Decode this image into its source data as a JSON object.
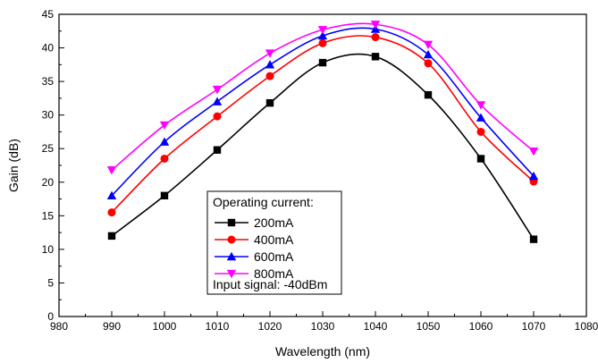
{
  "chart_data": {
    "type": "line",
    "title": "",
    "xlabel": "Wavelength (nm)",
    "ylabel": "Gain (dB)",
    "xlim": [
      980,
      1080
    ],
    "ylim": [
      0,
      45
    ],
    "x_ticks": [
      980,
      990,
      1000,
      1010,
      1020,
      1030,
      1040,
      1050,
      1060,
      1070,
      1080
    ],
    "y_ticks": [
      0,
      5,
      10,
      15,
      20,
      25,
      30,
      35,
      40,
      45
    ],
    "x_tick_labels": [
      "980",
      "990",
      "1000",
      "1010",
      "1020",
      "1030",
      "1040",
      "1050",
      "1060",
      "1070",
      "1080"
    ],
    "y_tick_labels": [
      "0",
      "5",
      "10",
      "15",
      "20",
      "25",
      "30",
      "35",
      "40",
      "45"
    ],
    "x": [
      990,
      1000,
      1010,
      1020,
      1030,
      1040,
      1050,
      1060,
      1070
    ],
    "grid": false,
    "legend_position": "bottom-center",
    "legend_title": "Operating current:",
    "legend_footer": "Input signal: -40dBm",
    "series": [
      {
        "name": "200mA",
        "color": "#000000",
        "marker": "square",
        "values": [
          12.0,
          18.0,
          24.8,
          31.8,
          37.8,
          38.7,
          33.0,
          23.5,
          11.5
        ]
      },
      {
        "name": "400mA",
        "color": "#ff0000",
        "marker": "circle",
        "values": [
          15.5,
          23.5,
          29.8,
          35.8,
          40.7,
          41.6,
          37.7,
          27.5,
          20.1
        ]
      },
      {
        "name": "600mA",
        "color": "#0000ff",
        "marker": "triangle-up",
        "values": [
          18.0,
          26.0,
          32.0,
          37.5,
          41.8,
          42.8,
          39.0,
          29.6,
          20.9
        ]
      },
      {
        "name": "800mA",
        "color": "#ff00ff",
        "marker": "triangle-down",
        "values": [
          21.8,
          28.5,
          33.8,
          39.2,
          42.7,
          43.5,
          40.5,
          31.5,
          24.6
        ]
      }
    ]
  }
}
